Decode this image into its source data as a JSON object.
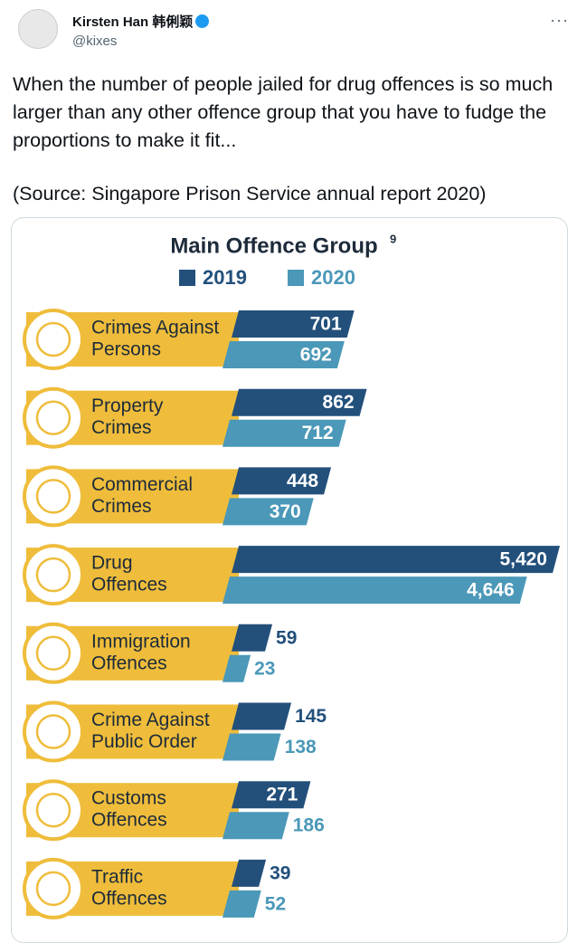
{
  "tweet": {
    "author": "Kirsten Han 韩俐颖",
    "handle": "@kixes",
    "text": "When the number of people jailed for drug offences is so much larger than any other offence group that you have to fudge the proportions to make it fit...",
    "source": "(Source: Singapore Prison Service annual report 2020)"
  },
  "chart_data": {
    "type": "bar",
    "orientation": "horizontal",
    "title": "Main Offence Group",
    "title_superscript": "9",
    "categories": [
      [
        "Crimes Against",
        "Persons"
      ],
      [
        "Property",
        "Crimes"
      ],
      [
        "Commercial",
        "Crimes"
      ],
      [
        "Drug",
        "Offences"
      ],
      [
        "Immigration",
        "Offences"
      ],
      [
        "Crime Against",
        "Public Order"
      ],
      [
        "Customs",
        "Offences"
      ],
      [
        "Traffic",
        "Offences"
      ]
    ],
    "series": [
      {
        "name": "2019",
        "color": "#23507b",
        "values": [
          701,
          862,
          448,
          5420,
          59,
          145,
          271,
          39
        ],
        "value_labels": [
          "701",
          "862",
          "448",
          "5,420",
          "59",
          "145",
          "271",
          "39"
        ]
      },
      {
        "name": "2020",
        "color": "#4b98b8",
        "values": [
          692,
          712,
          370,
          4646,
          23,
          138,
          186,
          52
        ],
        "value_labels": [
          "692",
          "712",
          "370",
          "4,646",
          "23",
          "138",
          "186",
          "52"
        ]
      }
    ]
  }
}
